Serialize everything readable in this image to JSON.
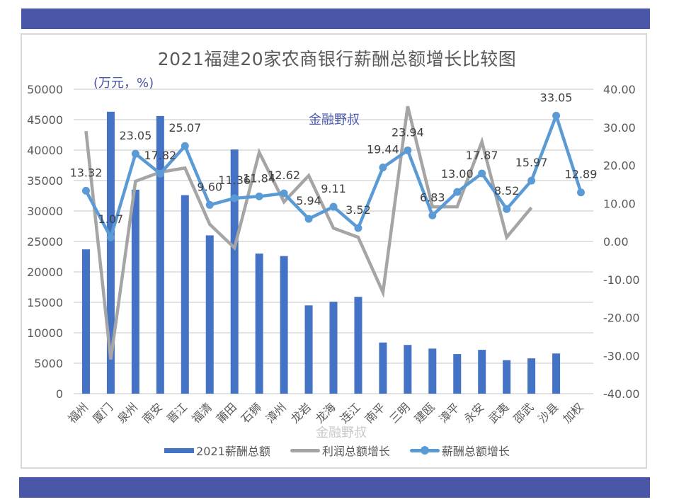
{
  "banners": {
    "top_color": "#4a57a9",
    "bottom_color": "#4a57a9"
  },
  "header": {
    "title": "2021福建20家农商银行薪酬总额增长比较图",
    "unit_label": "(万元，%)",
    "watermark": "金融野叔"
  },
  "legend": {
    "items": [
      {
        "label": "2021薪酬总额",
        "type": "bar",
        "color": "#4472c4"
      },
      {
        "label": "利润总额增长",
        "type": "line",
        "color": "#a5a5a5"
      },
      {
        "label": "薪酬总额增长",
        "type": "line-marker",
        "color": "#5b9bd5"
      }
    ]
  },
  "chart_data": {
    "type": "bar",
    "title": "2021福建20家农商银行薪酬总额增长比较图",
    "xlabel": "",
    "ylabel": "(万元，%)",
    "categories": [
      "福州",
      "厦门",
      "泉州",
      "南安",
      "晋江",
      "福清",
      "莆田",
      "石狮",
      "漳州",
      "龙岩",
      "龙海",
      "连江",
      "南平",
      "三明",
      "建瓯",
      "漳平",
      "永安",
      "武夷",
      "邵武",
      "沙县",
      "加权"
    ],
    "left_axis": {
      "min": 0,
      "max": 50000,
      "step": 5000,
      "ticks": [
        "0",
        "5000",
        "10000",
        "15000",
        "20000",
        "25000",
        "30000",
        "35000",
        "40000",
        "45000",
        "50000"
      ]
    },
    "right_axis": {
      "min": -40,
      "max": 40,
      "step": 10,
      "ticks": [
        "-40.00",
        "-30.00",
        "-20.00",
        "-10.00",
        "0.00",
        "10.00",
        "20.00",
        "30.00",
        "40.00"
      ]
    },
    "grid": true,
    "legend_position": "bottom",
    "series": [
      {
        "name": "2021薪酬总额",
        "type": "bar",
        "axis": "left",
        "color": "#4472c4",
        "values": [
          23700,
          46300,
          33500,
          45600,
          32600,
          26000,
          40100,
          23000,
          22600,
          14500,
          15100,
          15900,
          8400,
          8000,
          7400,
          6500,
          7200,
          5500,
          5800,
          6600,
          null
        ]
      },
      {
        "name": "利润总额增长",
        "type": "line",
        "axis": "right",
        "color": "#a5a5a5",
        "values": [
          29.0,
          -31.0,
          15.8,
          18.2,
          19.3,
          4.5,
          -1.7,
          23.4,
          10.4,
          17.3,
          3.5,
          1.1,
          -13.4,
          35.5,
          9.1,
          9.1,
          26.2,
          1.1,
          8.9,
          null,
          null
        ]
      },
      {
        "name": "薪酬总额增长",
        "type": "line",
        "axis": "right",
        "color": "#5b9bd5",
        "markers": true,
        "values": [
          13.32,
          1.07,
          23.05,
          17.82,
          25.07,
          9.6,
          11.36,
          11.84,
          12.62,
          5.94,
          9.11,
          3.52,
          19.44,
          23.94,
          6.83,
          13.0,
          17.87,
          8.52,
          15.97,
          33.05,
          12.89
        ],
        "labels": [
          "13.32",
          "1.07",
          "23.05",
          "17.82",
          "25.07",
          "9.60",
          "11.36",
          "11.84",
          "12.62",
          "5.94",
          "9.11",
          "3.52",
          "19.44",
          "23.94",
          "6.83",
          "13.00",
          "17.87",
          "8.52",
          "15.97",
          "33.05",
          "12.89"
        ]
      }
    ]
  }
}
